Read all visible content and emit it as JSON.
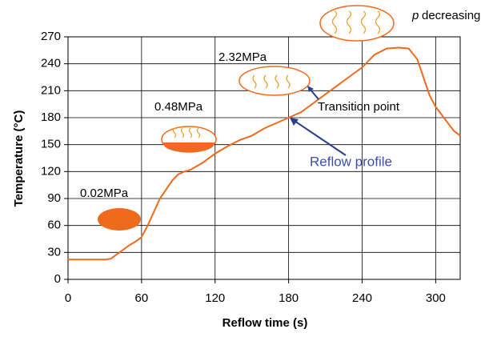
{
  "chart_data": {
    "type": "line",
    "x_label": "Reflow time (s)",
    "y_label": "Temperature (°C)",
    "series": [
      {
        "name": "Reflow profile",
        "color": "#ef6a1c",
        "x": [
          0,
          20,
          30,
          35,
          40,
          45,
          50,
          55,
          60,
          65,
          70,
          75,
          80,
          85,
          90,
          95,
          100,
          105,
          110,
          120,
          130,
          140,
          150,
          160,
          170,
          180,
          190,
          200,
          210,
          220,
          230,
          240,
          250,
          260,
          270,
          278,
          285,
          290,
          295,
          300,
          310,
          315,
          320
        ],
        "values": [
          22,
          22,
          22,
          23,
          28,
          33,
          38,
          42,
          47,
          60,
          75,
          90,
          100,
          110,
          117,
          120,
          122,
          126,
          130,
          140,
          148,
          155,
          160,
          168,
          174,
          180,
          186,
          196,
          206,
          216,
          226,
          236,
          250,
          257,
          258,
          257,
          245,
          225,
          205,
          192,
          174,
          165,
          160
        ]
      }
    ],
    "xlim": [
      0,
      320
    ],
    "xticks": [
      0,
      60,
      120,
      180,
      240,
      300
    ],
    "ylim": [
      0,
      270
    ],
    "yticks": [
      0,
      30,
      60,
      90,
      120,
      150,
      180,
      210,
      240,
      270
    ],
    "grid": true,
    "annotations": {
      "p1": "0.02MPa",
      "p2": "0.48MPa",
      "p3": "2.32MPa",
      "p_symbol": "p",
      "p_text": "decreasing",
      "transition": "Transition point",
      "profile": "Reflow profile"
    }
  }
}
